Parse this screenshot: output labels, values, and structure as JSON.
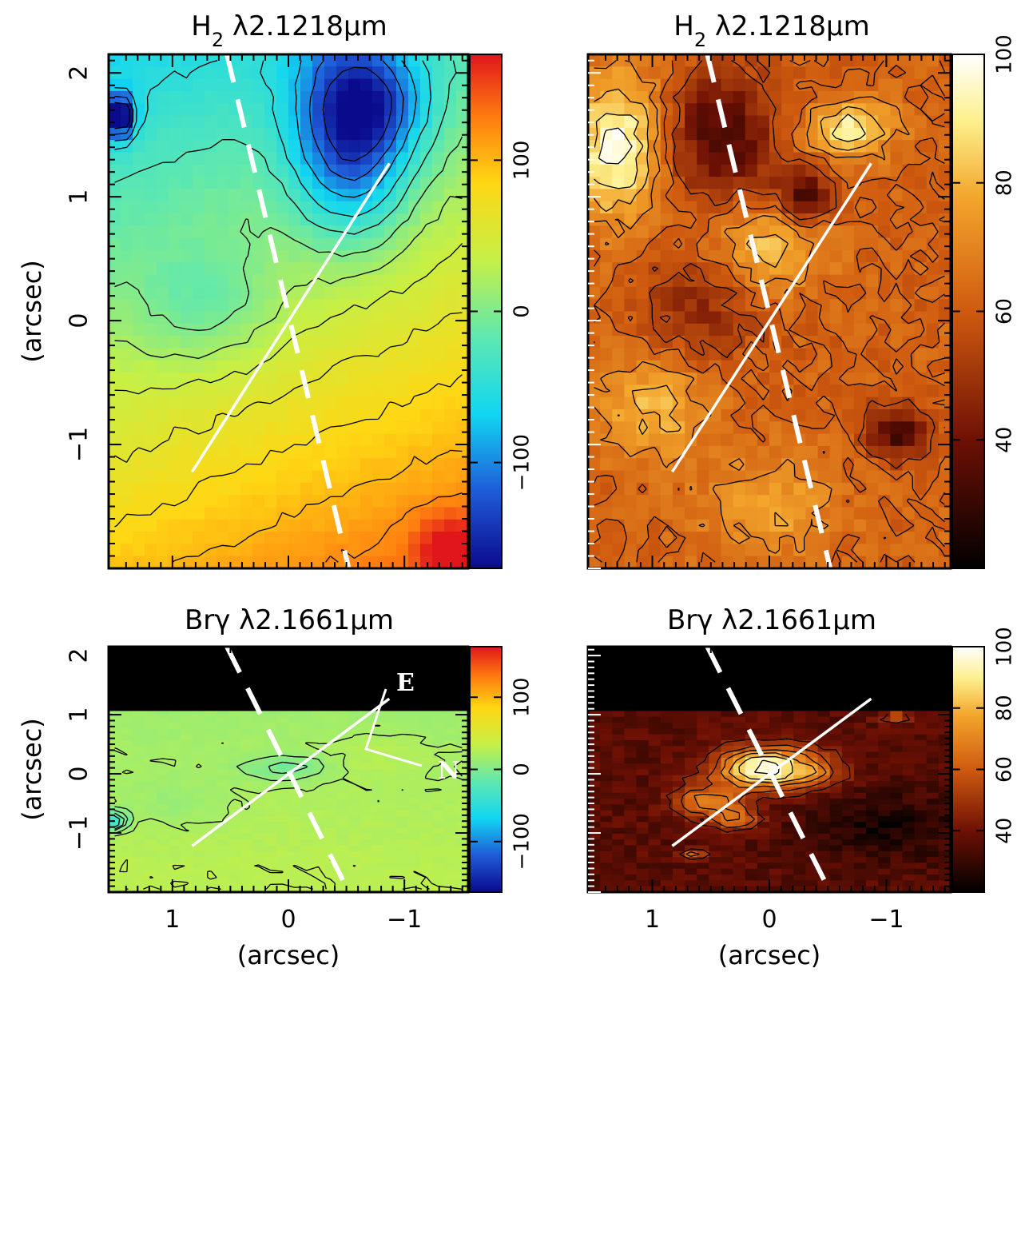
{
  "chart_data": [
    {
      "type": "heatmap",
      "title": "H2 λ2.1218μm",
      "title_main": "H",
      "title_sub": "2",
      "title_rest": " λ2.1218μm",
      "kind": "velocity",
      "colormap": "rainbow",
      "xlim": [
        1.55,
        -1.55
      ],
      "ylim": [
        -2.0,
        2.15
      ],
      "x_ticks": [
        1,
        0,
        -1
      ],
      "y_ticks": [
        2,
        1,
        0,
        -1
      ],
      "ylabel": "(arcsec)",
      "xlabel": "",
      "colorbar": {
        "range": [
          -170,
          170
        ],
        "ticks": [
          100,
          0,
          -100
        ]
      },
      "masked_above_arcsec": null,
      "field": {
        "base": 40,
        "x_gradient": -15,
        "y_gradient": -38,
        "blobs": [
          {
            "x": -0.55,
            "y": 1.55,
            "sx": 0.35,
            "sy": 0.55,
            "amp": -150
          },
          {
            "x": -0.85,
            "y": 1.75,
            "sx": 0.3,
            "sy": 0.25,
            "amp": -40
          },
          {
            "x": 1.45,
            "y": 1.65,
            "sx": 0.08,
            "sy": 0.12,
            "amp": -170
          },
          {
            "x": 0.7,
            "y": 0.1,
            "sx": 0.45,
            "sy": 0.35,
            "amp": -35
          },
          {
            "x": -1.4,
            "y": -1.85,
            "sx": 0.2,
            "sy": 0.2,
            "amp": 60
          }
        ]
      },
      "contour_levels": [
        -140,
        -110,
        -80,
        -50,
        -25,
        0,
        20,
        40,
        60,
        80,
        100,
        120
      ],
      "has_compass": false
    },
    {
      "type": "heatmap",
      "title": "H2 λ2.1218μm",
      "title_main": "H",
      "title_sub": "2",
      "title_rest": " λ2.1218μm",
      "kind": "dispersion",
      "colormap": "heat",
      "xlim": [
        1.55,
        -1.55
      ],
      "ylim": [
        -2.0,
        2.15
      ],
      "x_ticks": [
        1,
        0,
        -1
      ],
      "y_ticks": [
        2,
        1,
        0,
        -1
      ],
      "ylabel": "",
      "xlabel": "",
      "colorbar": {
        "range": [
          20,
          100
        ],
        "ticks": [
          100,
          80,
          60,
          40
        ]
      },
      "masked_above_arcsec": null,
      "field": {
        "base": 62,
        "x_gradient": 0,
        "y_gradient": 0,
        "blobs": [
          {
            "x": -0.3,
            "y": 1.0,
            "sx": 0.18,
            "sy": 0.15,
            "amp": -30
          },
          {
            "x": 0.4,
            "y": 1.5,
            "sx": 0.3,
            "sy": 0.35,
            "amp": -30
          },
          {
            "x": 1.3,
            "y": 1.4,
            "sx": 0.25,
            "sy": 0.4,
            "amp": 35
          },
          {
            "x": 0.0,
            "y": 0.6,
            "sx": 0.35,
            "sy": 0.25,
            "amp": 20
          },
          {
            "x": 1.0,
            "y": -0.7,
            "sx": 0.3,
            "sy": 0.3,
            "amp": 20
          },
          {
            "x": -1.1,
            "y": -0.9,
            "sx": 0.2,
            "sy": 0.15,
            "amp": -30
          },
          {
            "x": 0.6,
            "y": 0.1,
            "sx": 0.35,
            "sy": 0.3,
            "amp": -15
          },
          {
            "x": -0.7,
            "y": 1.55,
            "sx": 0.25,
            "sy": 0.15,
            "amp": 30
          },
          {
            "x": 0.0,
            "y": -1.5,
            "sx": 0.4,
            "sy": 0.3,
            "amp": 15
          }
        ]
      },
      "contour_levels": [
        55,
        62,
        70,
        78,
        86,
        94
      ],
      "has_compass": false
    },
    {
      "type": "heatmap",
      "title": "Brγ λ2.1661μm",
      "title_main": "Brγ λ2.1661μm",
      "title_sub": "",
      "title_rest": "",
      "kind": "velocity",
      "colormap": "rainbow",
      "xlim": [
        1.55,
        -1.55
      ],
      "ylim": [
        -2.0,
        2.15
      ],
      "x_ticks": [
        1,
        0,
        -1
      ],
      "y_ticks": [
        2,
        1,
        0,
        -1
      ],
      "ylabel": "(arcsec)",
      "xlabel": "(arcsec)",
      "colorbar": {
        "range": [
          -170,
          170
        ],
        "ticks": [
          100,
          0,
          -100
        ]
      },
      "masked_above_arcsec": 1.05,
      "field": {
        "base": 20,
        "x_gradient": 0,
        "y_gradient": -5,
        "blobs": [
          {
            "x": 0.05,
            "y": 0.1,
            "sx": 0.25,
            "sy": 0.15,
            "amp": -25
          },
          {
            "x": 1.5,
            "y": -0.8,
            "sx": 0.08,
            "sy": 0.12,
            "amp": -60
          },
          {
            "x": 1.0,
            "y": -0.5,
            "sx": 0.3,
            "sy": 0.3,
            "amp": -10
          },
          {
            "x": -0.8,
            "y": 0.3,
            "sx": 0.3,
            "sy": 0.3,
            "amp": 8
          }
        ]
      },
      "contour_levels": [
        -40,
        -20,
        -8,
        0,
        10,
        20,
        30
      ],
      "has_compass": true,
      "compass": {
        "east": "E",
        "north": "N"
      }
    },
    {
      "type": "heatmap",
      "title": "Brγ λ2.1661μm",
      "title_main": "Brγ λ2.1661μm",
      "title_sub": "",
      "title_rest": "",
      "kind": "dispersion",
      "colormap": "heat",
      "xlim": [
        1.55,
        -1.55
      ],
      "ylim": [
        -2.0,
        2.15
      ],
      "x_ticks": [
        1,
        0,
        -1
      ],
      "y_ticks": [
        2,
        1,
        0,
        -1
      ],
      "ylabel": "",
      "xlabel": "(arcsec)",
      "colorbar": {
        "range": [
          20,
          100
        ],
        "ticks": [
          100,
          80,
          60,
          40
        ]
      },
      "masked_above_arcsec": 1.05,
      "field": {
        "base": 36,
        "x_gradient": 0,
        "y_gradient": 0,
        "blobs": [
          {
            "x": 0.02,
            "y": 0.1,
            "sx": 0.3,
            "sy": 0.25,
            "amp": 65
          },
          {
            "x": 0.55,
            "y": -0.45,
            "sx": 0.2,
            "sy": 0.18,
            "amp": 30
          },
          {
            "x": 0.3,
            "y": -0.75,
            "sx": 0.15,
            "sy": 0.15,
            "amp": 30
          },
          {
            "x": 0.65,
            "y": -1.35,
            "sx": 0.07,
            "sy": 0.07,
            "amp": 25
          },
          {
            "x": -0.45,
            "y": 0.0,
            "sx": 0.15,
            "sy": 0.15,
            "amp": 15
          },
          {
            "x": -1.1,
            "y": 0.95,
            "sx": 0.1,
            "sy": 0.06,
            "amp": 25
          },
          {
            "x": -1.0,
            "y": -0.9,
            "sx": 0.5,
            "sy": 0.4,
            "amp": -12
          }
        ]
      },
      "contour_levels": [
        45,
        55,
        65,
        75,
        85,
        95
      ],
      "has_compass": false
    }
  ],
  "overlay": {
    "dashed_line": {
      "x1": 0.53,
      "y1": 2.15,
      "x2": -0.52,
      "y2": -2.0,
      "color": "#ffffff"
    },
    "solid_line": {
      "x1": 0.83,
      "y1": -1.22,
      "x2": -0.87,
      "y2": 1.27,
      "color": "#ffffff"
    }
  }
}
